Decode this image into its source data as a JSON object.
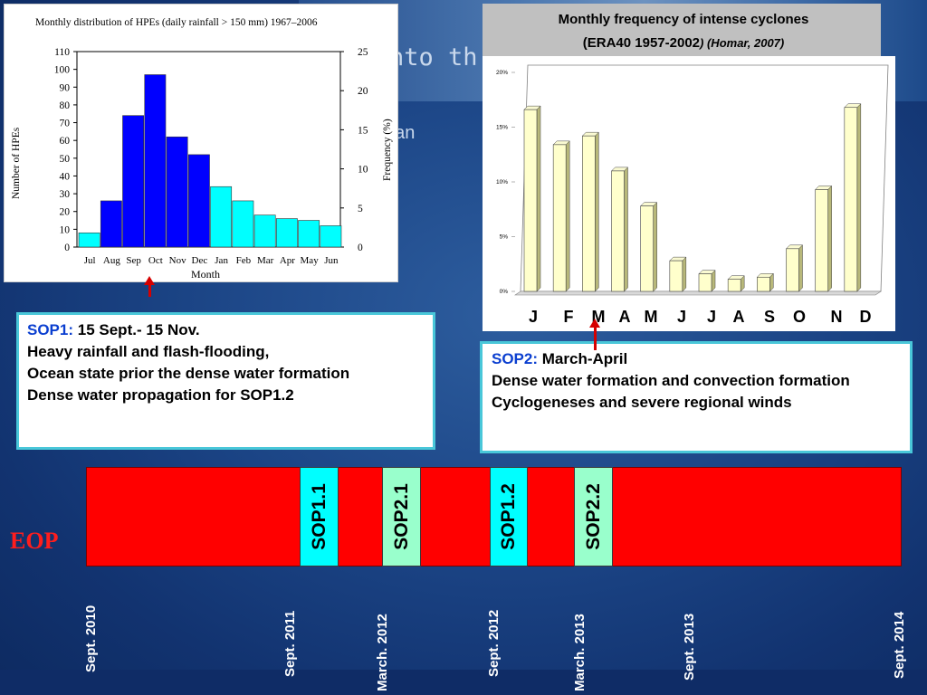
{
  "background": {
    "title_fragment": "nto th",
    "subtitle_fragment": "ean"
  },
  "hpe_chart": {
    "title": "Monthly distribution of HPEs (daily rainfall > 150 mm) 1967–2006",
    "ylabel_left": "Number of HPEs",
    "ylabel_right": "Frequency (%)",
    "xlabel": "Month"
  },
  "cyclone_chart": {
    "title_line1": "Monthly frequency of intense  cyclones",
    "title_line2_main": "(ERA40 1957-2002",
    "title_line2_cite": ") (Homar, 2007)",
    "month_letters": [
      "J",
      "F",
      "M",
      "A",
      "M",
      "J",
      "J",
      "A",
      "S",
      "O",
      "N",
      "D"
    ]
  },
  "chart_data": [
    {
      "type": "bar",
      "title": "Monthly distribution of HPEs (daily rainfall > 150 mm) 1967–2006",
      "categories": [
        "Jul",
        "Aug",
        "Sep",
        "Oct",
        "Nov",
        "Dec",
        "Jan",
        "Feb",
        "Mar",
        "Apr",
        "May",
        "Jun"
      ],
      "values": [
        8,
        26,
        74,
        97,
        62,
        52,
        34,
        26,
        18,
        16,
        15,
        12
      ],
      "colors": [
        "#00ffff",
        "#0000ff",
        "#0000ff",
        "#0000ff",
        "#0000ff",
        "#0000ff",
        "#00ffff",
        "#00ffff",
        "#00ffff",
        "#00ffff",
        "#00ffff",
        "#00ffff"
      ],
      "xlabel": "Month",
      "ylabel": "Number of HPEs",
      "ylim": [
        0,
        110
      ],
      "yticks": [
        0,
        10,
        20,
        30,
        40,
        50,
        60,
        70,
        80,
        90,
        100,
        110
      ],
      "y2label": "Frequency (%)",
      "y2lim": [
        0,
        25
      ],
      "y2ticks": [
        0,
        5,
        10,
        15,
        20,
        25
      ]
    },
    {
      "type": "bar",
      "title": "Monthly frequency of intense  cyclones (ERA40 1957-2002) (Homar, 2007)",
      "categories": [
        "J",
        "F",
        "M",
        "A",
        "M",
        "J",
        "J",
        "A",
        "S",
        "O",
        "N",
        "D"
      ],
      "values": [
        16.6,
        13.4,
        14.2,
        11.0,
        7.8,
        2.8,
        1.6,
        1.1,
        1.3,
        3.9,
        9.3,
        16.8
      ],
      "ylim": [
        0,
        20
      ],
      "ytick_labels": [
        "0%",
        "5%",
        "10%",
        "15%",
        "20%"
      ],
      "bar_color": "#ffffcc"
    }
  ],
  "sop1": {
    "label": "SOP1:",
    "dates": " 15 Sept.- 15 Nov.",
    "lines": [
      "Heavy rainfall and flash-flooding,",
      "Ocean state prior the dense water formation",
      "Dense water propagation for SOP1.2"
    ]
  },
  "sop2": {
    "label": "SOP2:",
    "dates": " March-April",
    "lines": [
      "Dense water formation and convection formation",
      "Cyclogeneses  and severe regional winds"
    ]
  },
  "timeline": {
    "eop_label": "EOP",
    "segments": [
      {
        "label": "SOP1.1",
        "color": "#00ffff"
      },
      {
        "label": "SOP2.1",
        "color": "#99ffcc"
      },
      {
        "label": "SOP1.2",
        "color": "#00ffff"
      },
      {
        "label": "SOP2.2",
        "color": "#99ffcc"
      }
    ],
    "dates": [
      "Sept. 2010",
      "Sept. 2011",
      "March. 2012",
      "Sept. 2012",
      "March. 2013",
      "Sept. 2013",
      "Sept. 2014"
    ]
  }
}
